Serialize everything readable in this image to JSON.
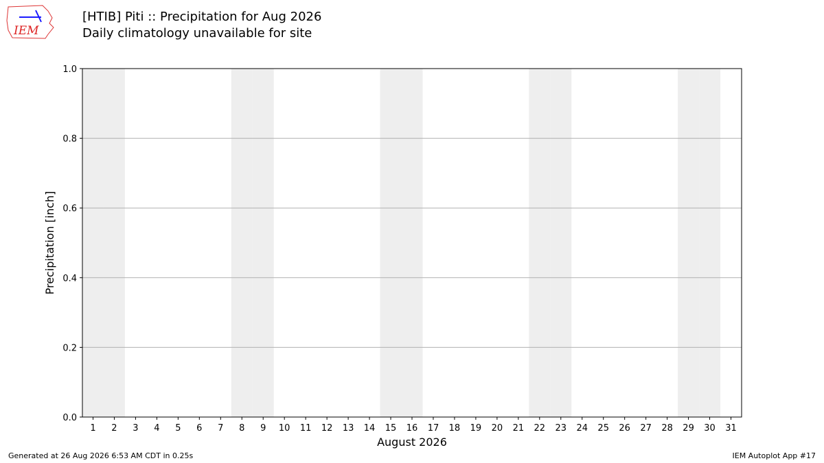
{
  "logo": "IEM",
  "footer": {
    "left": "Generated at 26 Aug 2026 6:53 AM CDT in 0.25s",
    "right": "IEM Autoplot App #17"
  },
  "chart_data": {
    "type": "bar",
    "title": "[HTIB] Piti :: Precipitation for Aug 2026",
    "subtitle": "Daily climatology unavailable for site",
    "x_label": "August 2026",
    "y_label": "Precipitation [inch]",
    "xlim": [
      0.5,
      31.5
    ],
    "xticks": [
      1,
      2,
      3,
      4,
      5,
      6,
      7,
      8,
      9,
      10,
      11,
      12,
      13,
      14,
      15,
      16,
      17,
      18,
      19,
      20,
      21,
      22,
      23,
      24,
      25,
      26,
      27,
      28,
      29,
      30,
      31
    ],
    "ylim": [
      0,
      1
    ],
    "yticks": [
      {
        "value": 0,
        "label": "0.0"
      },
      0.2,
      0.4,
      0.6,
      0.8,
      {
        "value": 1,
        "label": "1.0"
      }
    ],
    "shaded_days": [
      1,
      2,
      8,
      9,
      15,
      16,
      22,
      23,
      29,
      30
    ],
    "shade_color": "#eeeeee",
    "grid": true
  }
}
